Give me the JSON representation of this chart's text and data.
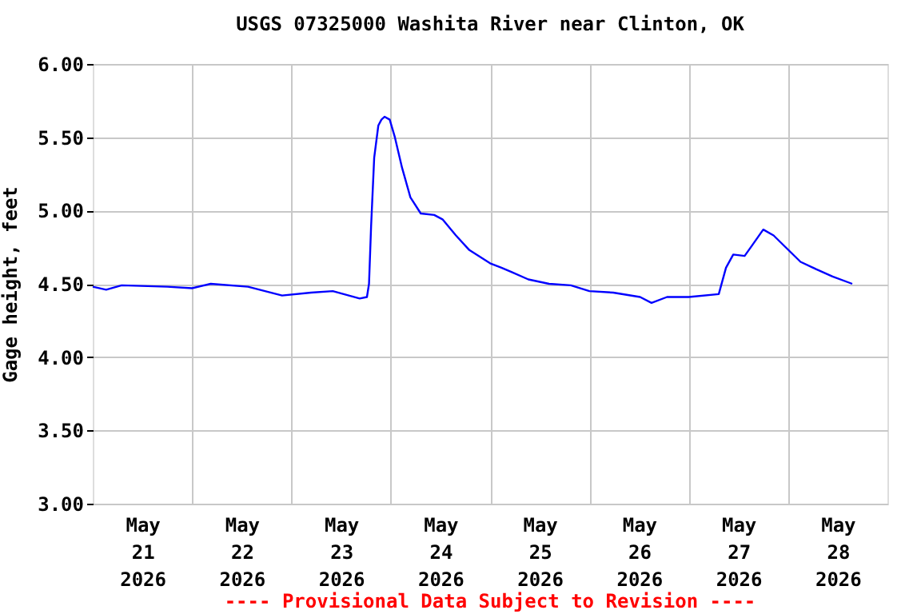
{
  "chart_data": {
    "type": "line",
    "title": "USGS 07325000 Washita River near Clinton, OK",
    "ylabel": "Gage height, feet",
    "annotations": [
      "---- Provisional Data Subject to Revision ----"
    ],
    "x": [
      "2026-05-21T00:00",
      "2026-05-21T03:15",
      "2026-05-21T07:00",
      "2026-05-21T18:00",
      "2026-05-22T00:00",
      "2026-05-22T04:30",
      "2026-05-22T13:30",
      "2026-05-22T21:45",
      "2026-05-23T04:45",
      "2026-05-23T10:00",
      "2026-05-23T16:30",
      "2026-05-23T18:15",
      "2026-05-23T18:45",
      "2026-05-23T19:15",
      "2026-05-23T20:00",
      "2026-05-23T21:00",
      "2026-05-23T21:45",
      "2026-05-23T22:30",
      "2026-05-23T23:45",
      "2026-05-24T01:00",
      "2026-05-24T02:45",
      "2026-05-24T04:45",
      "2026-05-24T07:15",
      "2026-05-24T10:30",
      "2026-05-24T12:30",
      "2026-05-24T15:45",
      "2026-05-24T19:00",
      "2026-05-25T00:00",
      "2026-05-25T02:45",
      "2026-05-25T05:15",
      "2026-05-25T09:15",
      "2026-05-25T14:15",
      "2026-05-25T19:30",
      "2026-05-26T00:00",
      "2026-05-26T05:45",
      "2026-05-26T12:15",
      "2026-05-26T15:00",
      "2026-05-26T18:45",
      "2026-05-27T00:00",
      "2026-05-27T07:15",
      "2026-05-27T09:00",
      "2026-05-27T10:45",
      "2026-05-27T13:30",
      "2026-05-27T15:15",
      "2026-05-27T18:00",
      "2026-05-27T20:30",
      "2026-05-27T23:45",
      "2026-05-28T03:00",
      "2026-05-28T06:45",
      "2026-05-28T10:45",
      "2026-05-28T15:30"
    ],
    "series": [
      {
        "color": "#0000ff",
        "values": [
          4.48,
          4.46,
          4.49,
          4.48,
          4.47,
          4.5,
          4.48,
          4.42,
          4.44,
          4.45,
          4.4,
          4.41,
          4.5,
          4.89,
          5.36,
          5.58,
          5.62,
          5.64,
          5.62,
          5.5,
          5.29,
          5.09,
          4.98,
          4.97,
          4.94,
          4.83,
          4.73,
          4.64,
          4.61,
          4.58,
          4.53,
          4.5,
          4.49,
          4.45,
          4.44,
          4.41,
          4.37,
          4.41,
          4.41,
          4.43,
          4.61,
          4.7,
          4.69,
          4.76,
          4.87,
          4.83,
          4.74,
          4.65,
          4.6,
          4.55,
          4.5
        ]
      }
    ],
    "xlim": [
      "2026-05-21T00:00",
      "2026-05-29T00:00"
    ],
    "xticks": [
      {
        "value": "2026-05-21T12:00",
        "label": "May 21 2026"
      },
      {
        "value": "2026-05-22T00:00",
        "label": null
      },
      {
        "value": "2026-05-22T12:00",
        "label": "May 22 2026"
      },
      {
        "value": "2026-05-23T00:00",
        "label": null
      },
      {
        "value": "2026-05-23T12:00",
        "label": "May 23 2026"
      },
      {
        "value": "2026-05-24T00:00",
        "label": null
      },
      {
        "value": "2026-05-24T12:00",
        "label": "May 24 2026"
      },
      {
        "value": "2026-05-25T00:00",
        "label": null
      },
      {
        "value": "2026-05-25T12:00",
        "label": "May 25 2026"
      },
      {
        "value": "2026-05-26T00:00",
        "label": null
      },
      {
        "value": "2026-05-26T12:00",
        "label": "May 26 2026"
      },
      {
        "value": "2026-05-27T00:00",
        "label": null
      },
      {
        "value": "2026-05-27T12:00",
        "label": "May 27 2026"
      },
      {
        "value": "2026-05-28T00:00",
        "label": null
      },
      {
        "value": "2026-05-28T12:00",
        "label": "May 28 2026"
      }
    ],
    "ylim": [
      3.0,
      6.0
    ],
    "yticks": [
      {
        "value": 3.0,
        "label": "3.00"
      },
      {
        "value": 3.5,
        "label": "3.50"
      },
      {
        "value": 4.0,
        "label": "4.00"
      },
      {
        "value": 4.5,
        "label": "4.50"
      },
      {
        "value": 5.0,
        "label": "5.00"
      },
      {
        "value": 5.5,
        "label": "5.50"
      },
      {
        "value": 6.0,
        "label": "6.00"
      }
    ],
    "grid": true,
    "marker": "none",
    "line_style": "solid"
  }
}
